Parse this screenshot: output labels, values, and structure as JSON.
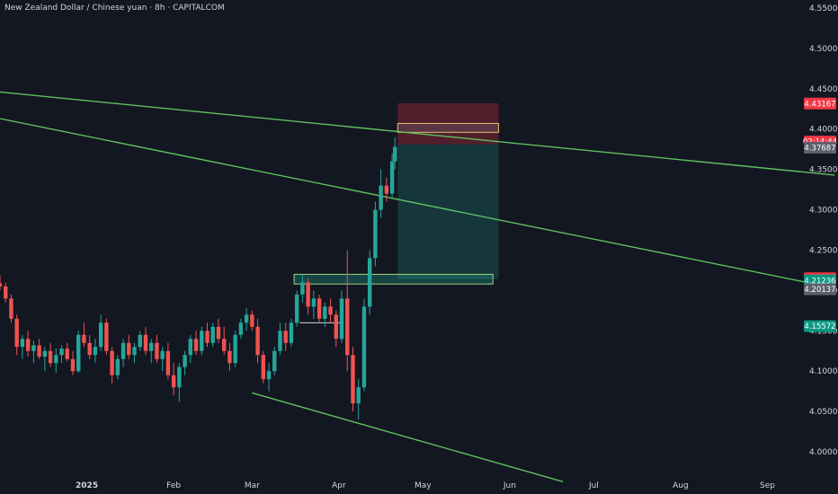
{
  "header": {
    "title": "New Zealand Dollar / Chinese yuan · 8h · CAPITALCOM"
  },
  "colors": {
    "background": "#131722",
    "up": "#26a69a",
    "down": "#ef5350",
    "trendline": "#5fbf5f",
    "stop_zone": "#f23645",
    "target_zone": "#22ab94",
    "axis_text": "#d1d4dc"
  },
  "chart_data": {
    "type": "candlestick",
    "title": "New Zealand Dollar / Chinese yuan · 8h · CAPITALCOM",
    "xlabel": "",
    "ylabel": "",
    "ylim": [
      3.97,
      4.56
    ],
    "y_ticks": [
      "4.55000",
      "4.50000",
      "4.45000",
      "4.40000",
      "4.35000",
      "4.30000",
      "4.25000",
      "4.20000",
      "4.15000",
      "4.10000",
      "4.05000",
      "4.00000"
    ],
    "x_ticks": [
      "2025",
      "Feb",
      "Mar",
      "Apr",
      "May",
      "Jun",
      "Jul",
      "Aug",
      "Sep"
    ],
    "price_labels": [
      {
        "text": "4.43167",
        "value": 4.43167,
        "color": "#f23645"
      },
      {
        "text": "02:14:44",
        "value": 4.3845,
        "color": "#f23645"
      },
      {
        "text": "4.37687",
        "value": 4.37687,
        "color": "#5d606b"
      },
      {
        "text": "4.21522",
        "value": 4.21522,
        "color": "#f23645"
      },
      {
        "text": "4.21236",
        "value": 4.21236,
        "color": "#089981"
      },
      {
        "text": "4.20137",
        "value": 4.20137,
        "color": "#5d606b"
      },
      {
        "text": "4.15572",
        "value": 4.15572,
        "color": "#089981"
      }
    ],
    "trendlines": [
      {
        "from": [
          "2024-12-01",
          4.446
        ],
        "to": [
          "2025-09-25",
          4.343
        ]
      },
      {
        "from": [
          "2024-12-01",
          4.413
        ],
        "to": [
          "2025-09-25",
          4.203
        ]
      },
      {
        "from": [
          "2025-03-01",
          4.073
        ],
        "to": [
          "2025-06-20",
          3.963
        ]
      }
    ],
    "zones": [
      {
        "kind": "stop",
        "from": "2025-04-22",
        "to": "2025-05-28",
        "top": 4.432,
        "bottom": 4.381
      },
      {
        "kind": "target",
        "from": "2025-04-22",
        "to": "2025-05-28",
        "top": 4.381,
        "bottom": 4.214
      },
      {
        "kind": "supply",
        "from": "2025-04-22",
        "to": "2025-05-28",
        "top": 4.407,
        "bottom": 4.396
      },
      {
        "kind": "demand",
        "from": "2025-03-16",
        "to": "2025-05-26",
        "top": 4.22,
        "bottom": 4.208
      }
    ],
    "range_lines": [
      {
        "from": "2025-03-18",
        "to": "2025-04-02",
        "value": 4.16
      }
    ],
    "series": [
      {
        "candles": [
          [
            "2024-12-01",
            4.209,
            4.219,
            4.2,
            4.205
          ],
          [
            "2024-12-03",
            4.205,
            4.21,
            4.185,
            4.19
          ],
          [
            "2024-12-05",
            4.19,
            4.195,
            4.16,
            4.165
          ],
          [
            "2024-12-07",
            4.165,
            4.17,
            4.12,
            4.13
          ],
          [
            "2024-12-09",
            4.13,
            4.145,
            4.115,
            4.14
          ],
          [
            "2024-12-11",
            4.14,
            4.15,
            4.118,
            4.125
          ],
          [
            "2024-12-13",
            4.125,
            4.138,
            4.11,
            4.132
          ],
          [
            "2024-12-15",
            4.132,
            4.14,
            4.115,
            4.118
          ],
          [
            "2024-12-17",
            4.118,
            4.13,
            4.1,
            4.125
          ],
          [
            "2024-12-19",
            4.125,
            4.135,
            4.105,
            4.11
          ],
          [
            "2024-12-21",
            4.11,
            4.128,
            4.098,
            4.12
          ],
          [
            "2024-12-23",
            4.12,
            4.132,
            4.11,
            4.128
          ],
          [
            "2024-12-25",
            4.128,
            4.135,
            4.112,
            4.115
          ],
          [
            "2024-12-27",
            4.115,
            4.125,
            4.095,
            4.1
          ],
          [
            "2024-12-29",
            4.1,
            4.15,
            4.098,
            4.145
          ],
          [
            "2024-12-31",
            4.145,
            4.16,
            4.13,
            4.135
          ],
          [
            "2025-01-02",
            4.135,
            4.145,
            4.115,
            4.12
          ],
          [
            "2025-01-04",
            4.12,
            4.14,
            4.11,
            4.13
          ],
          [
            "2025-01-06",
            4.13,
            4.17,
            4.125,
            4.16
          ],
          [
            "2025-01-08",
            4.16,
            4.165,
            4.12,
            4.125
          ],
          [
            "2025-01-10",
            4.125,
            4.13,
            4.085,
            4.095
          ],
          [
            "2025-01-12",
            4.095,
            4.12,
            4.09,
            4.115
          ],
          [
            "2025-01-14",
            4.115,
            4.14,
            4.105,
            4.135
          ],
          [
            "2025-01-16",
            4.135,
            4.145,
            4.115,
            4.12
          ],
          [
            "2025-01-18",
            4.12,
            4.135,
            4.11,
            4.13
          ],
          [
            "2025-01-20",
            4.13,
            4.15,
            4.125,
            4.145
          ],
          [
            "2025-01-22",
            4.145,
            4.155,
            4.12,
            4.125
          ],
          [
            "2025-01-24",
            4.125,
            4.14,
            4.11,
            4.135
          ],
          [
            "2025-01-26",
            4.135,
            4.145,
            4.11,
            4.115
          ],
          [
            "2025-01-28",
            4.115,
            4.13,
            4.1,
            4.125
          ],
          [
            "2025-01-30",
            4.125,
            4.135,
            4.09,
            4.095
          ],
          [
            "2025-02-01",
            4.095,
            4.11,
            4.07,
            4.08
          ],
          [
            "2025-02-03",
            4.08,
            4.11,
            4.062,
            4.105
          ],
          [
            "2025-02-05",
            4.105,
            4.125,
            4.095,
            4.12
          ],
          [
            "2025-02-07",
            4.12,
            4.145,
            4.11,
            4.14
          ],
          [
            "2025-02-09",
            4.14,
            4.15,
            4.12,
            4.125
          ],
          [
            "2025-02-11",
            4.125,
            4.155,
            4.12,
            4.15
          ],
          [
            "2025-02-13",
            4.15,
            4.16,
            4.13,
            4.135
          ],
          [
            "2025-02-15",
            4.135,
            4.16,
            4.13,
            4.155
          ],
          [
            "2025-02-17",
            4.155,
            4.165,
            4.135,
            4.14
          ],
          [
            "2025-02-19",
            4.14,
            4.155,
            4.12,
            4.125
          ],
          [
            "2025-02-21",
            4.125,
            4.135,
            4.1,
            4.11
          ],
          [
            "2025-02-23",
            4.11,
            4.15,
            4.105,
            4.145
          ],
          [
            "2025-02-25",
            4.145,
            4.165,
            4.14,
            4.16
          ],
          [
            "2025-02-27",
            4.16,
            4.178,
            4.15,
            4.17
          ],
          [
            "2025-03-01",
            4.17,
            4.175,
            4.15,
            4.155
          ],
          [
            "2025-03-03",
            4.155,
            4.165,
            4.11,
            4.12
          ],
          [
            "2025-03-05",
            4.12,
            4.125,
            4.085,
            4.09
          ],
          [
            "2025-03-07",
            4.09,
            4.11,
            4.075,
            4.1
          ],
          [
            "2025-03-09",
            4.1,
            4.13,
            4.095,
            4.125
          ],
          [
            "2025-03-11",
            4.125,
            4.16,
            4.12,
            4.15
          ],
          [
            "2025-03-13",
            4.15,
            4.16,
            4.125,
            4.135
          ],
          [
            "2025-03-15",
            4.135,
            4.165,
            4.13,
            4.16
          ],
          [
            "2025-03-17",
            4.16,
            4.2,
            4.155,
            4.195
          ],
          [
            "2025-03-19",
            4.195,
            4.22,
            4.185,
            4.21
          ],
          [
            "2025-03-21",
            4.21,
            4.215,
            4.17,
            4.18
          ],
          [
            "2025-03-23",
            4.18,
            4.2,
            4.165,
            4.19
          ],
          [
            "2025-03-25",
            4.19,
            4.195,
            4.16,
            4.165
          ],
          [
            "2025-03-27",
            4.165,
            4.185,
            4.155,
            4.18
          ],
          [
            "2025-03-29",
            4.18,
            4.19,
            4.16,
            4.17
          ],
          [
            "2025-03-31",
            4.17,
            4.175,
            4.13,
            4.14
          ],
          [
            "2025-04-02",
            4.14,
            4.2,
            4.135,
            4.19
          ],
          [
            "2025-04-04",
            4.19,
            4.25,
            4.1,
            4.12
          ],
          [
            "2025-04-06",
            4.12,
            4.13,
            4.05,
            4.06
          ],
          [
            "2025-04-08",
            4.06,
            4.09,
            4.04,
            4.08
          ],
          [
            "2025-04-10",
            4.08,
            4.19,
            4.075,
            4.18
          ],
          [
            "2025-04-12",
            4.18,
            4.25,
            4.17,
            4.24
          ],
          [
            "2025-04-14",
            4.24,
            4.31,
            4.23,
            4.3
          ],
          [
            "2025-04-16",
            4.3,
            4.35,
            4.29,
            4.33
          ],
          [
            "2025-04-18",
            4.33,
            4.34,
            4.31,
            4.32
          ],
          [
            "2025-04-20",
            4.32,
            4.37,
            4.315,
            4.36
          ],
          [
            "2025-04-21",
            4.36,
            4.39,
            4.35,
            4.378
          ]
        ]
      }
    ]
  }
}
